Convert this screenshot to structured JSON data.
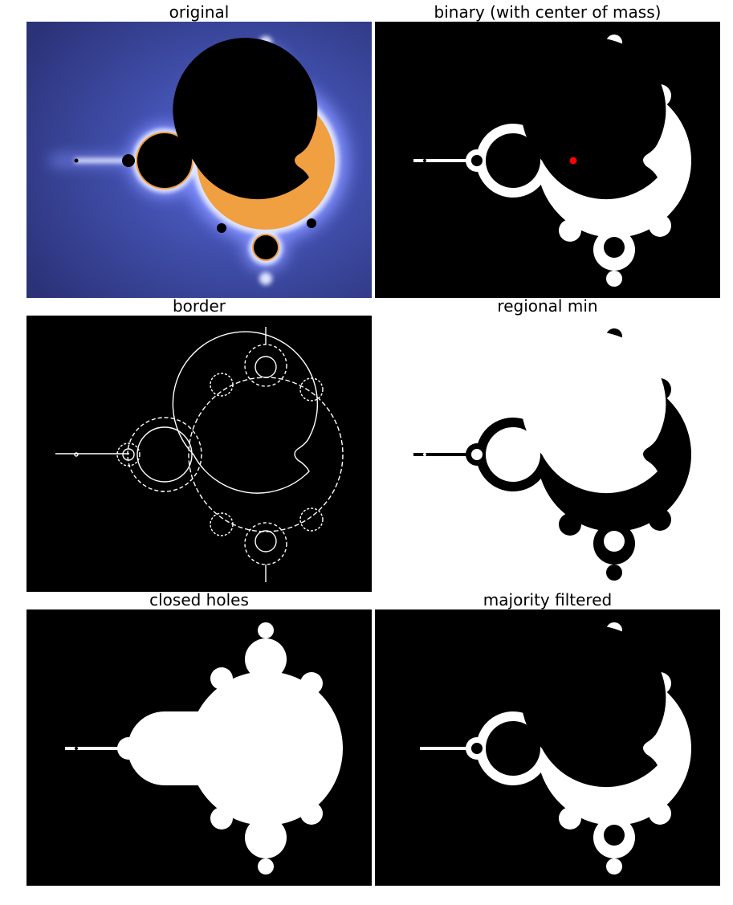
{
  "panels": {
    "original": {
      "title": "original"
    },
    "binary": {
      "title": "binary (with center of mass)"
    },
    "border": {
      "title": "border"
    },
    "regional_min": {
      "title": "regional min"
    },
    "closed_holes": {
      "title": "closed holes"
    },
    "majority_filtered": {
      "title": "majority filtered"
    }
  },
  "colors": {
    "background_blue": "#3a4494",
    "glow_blue": "#6f7de8",
    "edge_orange": "#f0a040",
    "center_of_mass": "#ff0000"
  }
}
